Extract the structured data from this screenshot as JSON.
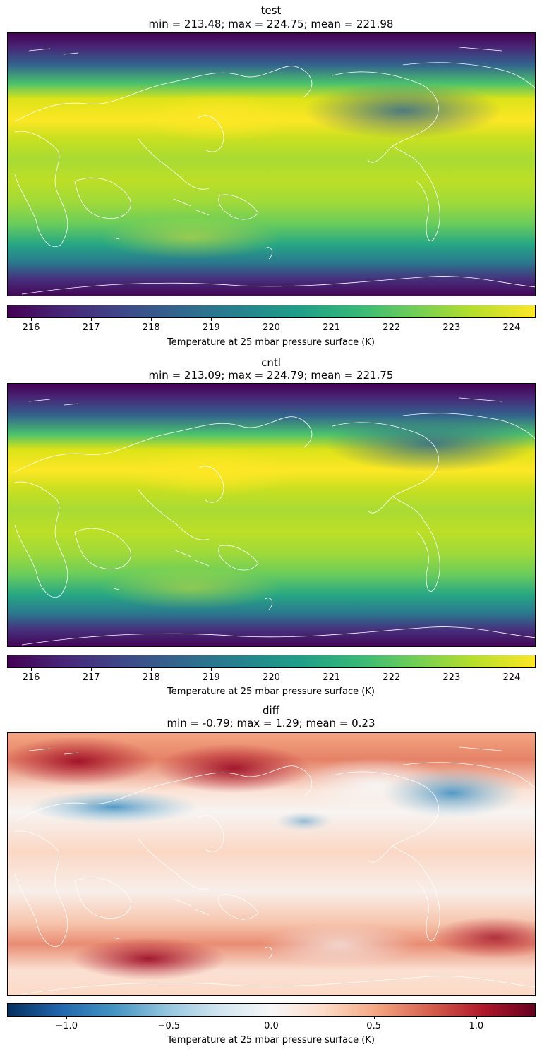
{
  "panels": [
    {
      "title": "test",
      "stats": "min = 213.48; max = 224.75; mean = 221.98",
      "colormap": "viridis",
      "colorbar": {
        "min": 215.6,
        "max": 224.4,
        "ticks": [
          "216",
          "217",
          "218",
          "219",
          "220",
          "221",
          "222",
          "223",
          "224"
        ],
        "tick_values": [
          216,
          217,
          218,
          219,
          220,
          221,
          222,
          223,
          224
        ]
      },
      "colorbar_label": "Temperature at 25 mbar pressure surface (K)"
    },
    {
      "title": "cntl",
      "stats": "min = 213.09; max = 224.79; mean = 221.75",
      "colormap": "viridis",
      "colorbar": {
        "min": 215.6,
        "max": 224.4,
        "ticks": [
          "216",
          "217",
          "218",
          "219",
          "220",
          "221",
          "222",
          "223",
          "224"
        ],
        "tick_values": [
          216,
          217,
          218,
          219,
          220,
          221,
          222,
          223,
          224
        ]
      },
      "colorbar_label": "Temperature at 25 mbar pressure surface (K)"
    },
    {
      "title": "diff",
      "stats": "min = -0.79; max = 1.29; mean = 0.23",
      "colormap": "RdBu_r",
      "colorbar": {
        "min": -1.29,
        "max": 1.29,
        "ticks": [
          "−1.0",
          "−0.5",
          "0.0",
          "0.5",
          "1.0"
        ],
        "tick_values": [
          -1.0,
          -0.5,
          0.0,
          0.5,
          1.0
        ]
      },
      "colorbar_label": "Temperature at 25 mbar pressure surface (K)"
    }
  ],
  "colors": {
    "viridis": [
      "#440154",
      "#482878",
      "#3e4989",
      "#31688e",
      "#26828e",
      "#1f9e89",
      "#35b779",
      "#6ece58",
      "#b5de2b",
      "#fde725"
    ],
    "rdbu_r": [
      "#053061",
      "#2166ac",
      "#4393c3",
      "#92c5de",
      "#d1e5f0",
      "#f7f7f7",
      "#fddbc7",
      "#f4a582",
      "#d6604d",
      "#b2182b",
      "#67001f"
    ],
    "coastline": "#ffffff"
  }
}
